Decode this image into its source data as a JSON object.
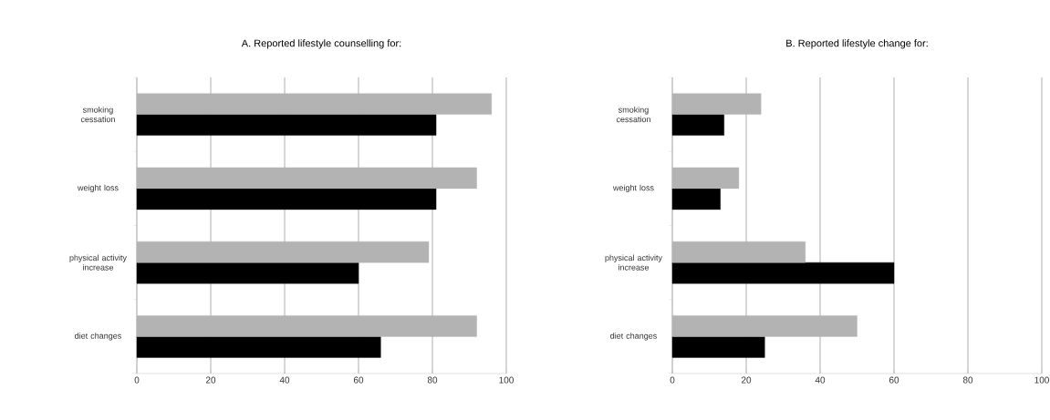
{
  "chart_data": [
    {
      "type": "bar",
      "orientation": "horizontal",
      "title": "A. Reported lifestyle counselling for:",
      "categories": [
        "smoking cessation",
        "weight loss",
        "physical activity increase",
        "diet changes"
      ],
      "series": [
        {
          "color": "#b3b3b3",
          "values": [
            96,
            92,
            79,
            92
          ]
        },
        {
          "color": "#000000",
          "values": [
            81,
            81,
            60,
            66
          ]
        }
      ],
      "xlim": [
        0,
        100
      ],
      "xticks": [
        0,
        20,
        40,
        60,
        80,
        100
      ],
      "grid": "x"
    },
    {
      "type": "bar",
      "orientation": "horizontal",
      "title": "B. Reported lifestyle change for:",
      "categories": [
        "smoking cessation",
        "weight loss",
        "physical activity increase",
        "diet changes"
      ],
      "series": [
        {
          "color": "#b3b3b3",
          "values": [
            24,
            18,
            36,
            50
          ]
        },
        {
          "color": "#000000",
          "values": [
            14,
            13,
            60,
            25
          ]
        }
      ],
      "xlim": [
        0,
        100
      ],
      "xticks": [
        0,
        20,
        40,
        60,
        80,
        100
      ],
      "grid": "x"
    }
  ]
}
